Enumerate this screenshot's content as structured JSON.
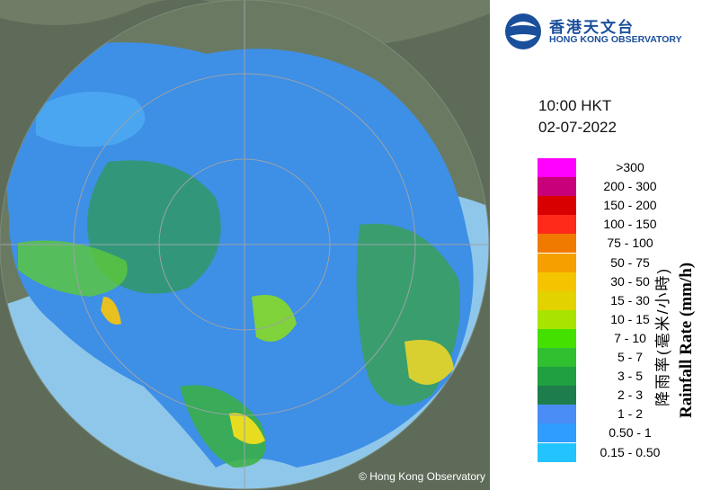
{
  "logo": {
    "chinese": "香港天文台",
    "english": "HONG KONG OBSERVATORY"
  },
  "time": "10:00 HKT",
  "date": "02-07-2022",
  "legend": {
    "title_chinese": "降雨率(毫米/小時)",
    "title_english": "Rainfall Rate (mm/h)",
    "items": [
      {
        "label": ">300",
        "color": "#ff00ff"
      },
      {
        "label": "200 - 300",
        "color": "#c8007a"
      },
      {
        "label": "150 - 200",
        "color": "#d80000"
      },
      {
        "label": "100 - 150",
        "color": "#ff2a1a"
      },
      {
        "label": "75 - 100",
        "color": "#f07a00"
      },
      {
        "label": "50 - 75",
        "color": "#f5a000"
      },
      {
        "label": "30 - 50",
        "color": "#f5c400"
      },
      {
        "label": "15 - 30",
        "color": "#e2d200"
      },
      {
        "label": "10 - 15",
        "color": "#a8e400"
      },
      {
        "label": "7 - 10",
        "color": "#44e000"
      },
      {
        "label": "5 - 7",
        "color": "#30c030"
      },
      {
        "label": "3 - 5",
        "color": "#20a040"
      },
      {
        "label": "2 - 3",
        "color": "#1e7d4c"
      },
      {
        "label": "1 - 2",
        "color": "#4a8cf5"
      },
      {
        "label": "0.50 - 1",
        "color": "#2f9cff"
      },
      {
        "label": "0.15 - 0.50",
        "color": "#22c4ff"
      }
    ]
  },
  "copyright": "© Hong Kong Observatory"
}
